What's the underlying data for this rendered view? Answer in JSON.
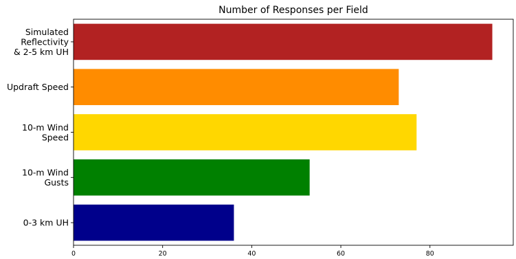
{
  "chart_data": {
    "type": "bar",
    "orientation": "horizontal",
    "title": "Number of Responses per Field",
    "xlabel": "",
    "ylabel": "",
    "categories": [
      "Simulated\nReflectivity\n& 2-5 km UH",
      "Updraft Speed",
      "10-m Wind\nSpeed",
      "10-m Wind\nGusts",
      "0-3 km UH"
    ],
    "values": [
      94,
      73,
      77,
      53,
      36
    ],
    "colors": [
      "#b22222",
      "#ff8c00",
      "#ffd700",
      "#008000",
      "#00008b"
    ],
    "xlim": [
      0,
      98.7
    ],
    "xticks": [
      0,
      20,
      40,
      60,
      80
    ],
    "grid": false
  }
}
